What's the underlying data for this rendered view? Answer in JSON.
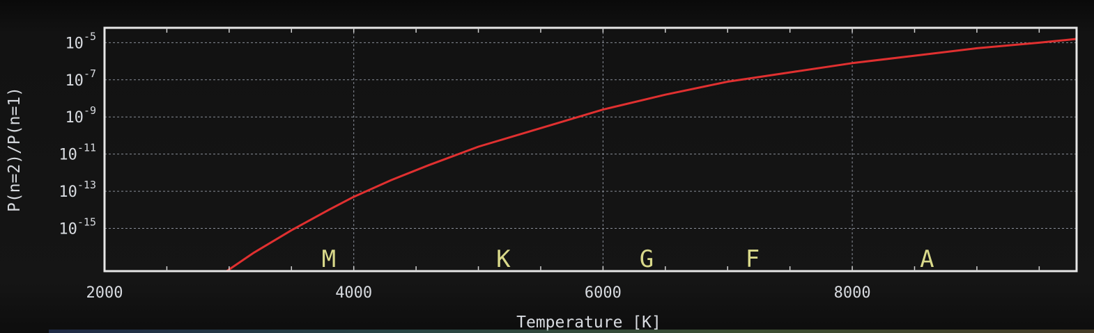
{
  "chart_data": {
    "type": "line",
    "title": "",
    "xlabel": "Temperature [K]",
    "ylabel": "P(n=2)/P(n=1)",
    "xlim": [
      2000,
      9800
    ],
    "ylim_log10": [
      -17.3,
      -4.2
    ],
    "yscale": "log",
    "grid": true,
    "x_ticks": [
      {
        "value": 2000,
        "label": "2000"
      },
      {
        "value": 4000,
        "label": "4000"
      },
      {
        "value": 6000,
        "label": "6000"
      },
      {
        "value": 8000,
        "label": "8000"
      }
    ],
    "y_ticks": [
      {
        "exp": -5,
        "base": "10",
        "sup": "-5"
      },
      {
        "exp": -7,
        "base": "10",
        "sup": "-7"
      },
      {
        "exp": -9,
        "base": "10",
        "sup": "-9"
      },
      {
        "exp": -11,
        "base": "10",
        "sup": "-11"
      },
      {
        "exp": -13,
        "base": "10",
        "sup": "-13"
      },
      {
        "exp": -15,
        "base": "10",
        "sup": "-15"
      }
    ],
    "series": [
      {
        "color": "#e03030",
        "x": [
          2980,
          3200,
          3500,
          3800,
          4000,
          4300,
          4600,
          5000,
          5500,
          6000,
          6500,
          7000,
          7500,
          8000,
          8500,
          9000,
          9500,
          9800
        ],
        "y_log10": [
          -17.3,
          -16.3,
          -15.1,
          -14.0,
          -13.3,
          -12.4,
          -11.6,
          -10.6,
          -9.6,
          -8.6,
          -7.8,
          -7.1,
          -6.6,
          -6.1,
          -5.7,
          -5.3,
          -5.0,
          -4.8
        ]
      }
    ],
    "annotations": [
      {
        "text": "M",
        "x": 3800
      },
      {
        "text": "K",
        "x": 5200
      },
      {
        "text": "G",
        "x": 6350
      },
      {
        "text": "F",
        "x": 7200
      },
      {
        "text": "A",
        "x": 8600
      }
    ]
  }
}
